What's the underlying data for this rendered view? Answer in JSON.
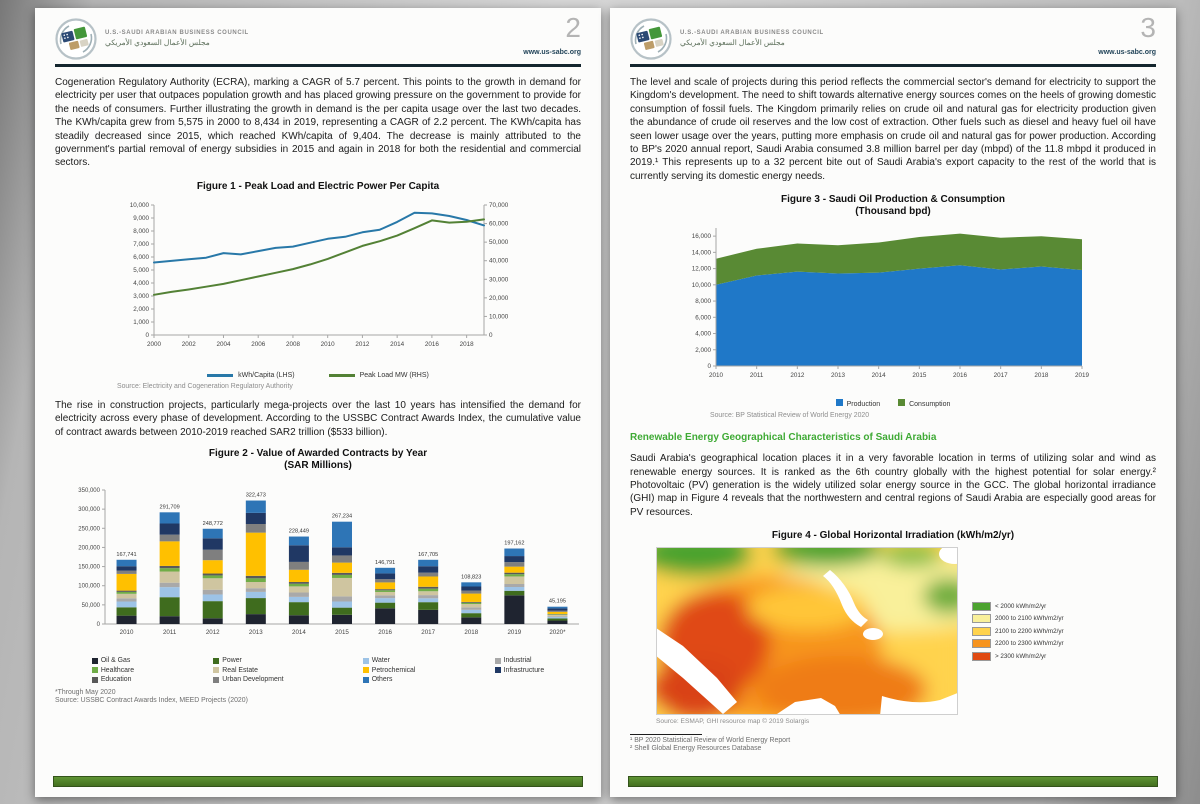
{
  "header": {
    "org_name_en": "U.S.-SAUDI ARABIAN BUSINESS COUNCIL",
    "org_name_ar": "مجلس الأعمال السعودي الأمريكي",
    "website": "www.us-sabc.org"
  },
  "pages": {
    "p2": {
      "page_number": "2",
      "paragraph1": "Cogeneration Regulatory Authority (ECRA), marking a CAGR of 5.7 percent. This points to the growth in demand for electricity per user that outpaces population growth and has placed growing pressure on the government to provide for the needs of consumers. Further illustrating the growth in demand is the per capita usage over the last two decades. The KWh/capita grew from 5,575 in 2000 to 8,434 in 2019, representing a CAGR of 2.2 percent. The KWh/capita has steadily decreased since 2015, which reached KWh/capita of 9,404. The decrease is mainly attributed to the government's partial removal of energy subsidies in 2015 and again in 2018 for both the residential and commercial sectors.",
      "paragraph2": "The rise in construction projects, particularly mega-projects over the last 10 years has intensified the demand for electricity across every phase of development. According to the USSBC Contract Awards Index, the cumulative value of contract awards between 2010-2019 reached SAR2 trillion ($533 billion)."
    },
    "p3": {
      "page_number": "3",
      "paragraph1": "The level and scale of projects during this period reflects the commercial sector's demand for electricity to support the Kingdom's development. The need to shift towards alternative energy sources comes on the heels of growing domestic consumption of fossil fuels. The Kingdom primarily relies on crude oil and natural gas for electricity production given the abundance of crude oil reserves and the low cost of extraction. Other fuels such as diesel and heavy fuel oil have seen lower usage over the years, putting more emphasis on crude oil and natural gas for power production. According to BP's 2020 annual report, Saudi Arabia consumed 3.8 million barrel per day (mbpd) of the 11.8 mbpd it produced in 2019.¹ This represents up to a 32 percent bite out of Saudi Arabia's export capacity to the rest of the world that is currently serving its domestic energy needs.",
      "section_heading": "Renewable Energy Geographical Characteristics of Saudi Arabia",
      "paragraph2": "Saudi Arabia's geographical location places it in a very favorable location in terms of utilizing solar and wind as renewable energy sources. It is ranked as the 6th country globally with the highest potential for solar energy.² Photovoltaic (PV) generation is the widely utilized solar energy source in the GCC. The global horizontal irradiance (GHI) map in Figure 4 reveals that the northwestern and central regions of Saudi Arabia are especially good areas for PV resources.",
      "footnote1": "¹ BP 2020 Statistical Review of World Energy Report",
      "footnote2": "² Shell Global Energy Resources Database"
    }
  },
  "chart_data": [
    {
      "id": "figure1",
      "type": "line",
      "title": "Figure 1 - Peak Load and Electric Power Per Capita",
      "x": [
        2000,
        2001,
        2002,
        2003,
        2004,
        2005,
        2006,
        2007,
        2008,
        2009,
        2010,
        2011,
        2012,
        2013,
        2014,
        2015,
        2016,
        2017,
        2018,
        2019
      ],
      "x_tick_every": 2,
      "left_axis": {
        "min": 0,
        "max": 10000,
        "step": 1000
      },
      "right_axis": {
        "min": 0,
        "max": 70000,
        "step": 10000
      },
      "series": [
        {
          "name": "kWh/Capita (LHS)",
          "color": "#2878a8",
          "axis": "left",
          "values": [
            5575,
            5700,
            5820,
            5950,
            6300,
            6200,
            6450,
            6700,
            6800,
            7100,
            7400,
            7550,
            7900,
            8100,
            8700,
            9404,
            9350,
            9150,
            8850,
            8434
          ]
        },
        {
          "name": "Peak Load MW (RHS)",
          "color": "#538135",
          "axis": "right",
          "values": [
            21673,
            23200,
            24500,
            26000,
            27500,
            29500,
            31500,
            33500,
            35500,
            38000,
            41000,
            44500,
            48000,
            50500,
            53500,
            57500,
            61700,
            60500,
            61000,
            62260
          ]
        }
      ],
      "grid": false,
      "legend_position": "bottom",
      "source": "Source: Electricity and Cogeneration Regulatory Authority"
    },
    {
      "id": "figure2",
      "type": "bar",
      "title": "Figure 2 - Value of Awarded Contracts by Year",
      "subtitle": "(SAR Millions)",
      "categories": [
        "2010",
        "2011",
        "2012",
        "2013",
        "2014",
        "2015",
        "2016",
        "2017",
        "2018",
        "2019",
        "2020*"
      ],
      "totals": [
        167741,
        291709,
        248772,
        322473,
        228449,
        267234,
        146791,
        167705,
        108823,
        197162,
        45195
      ],
      "y_axis": {
        "min": 0,
        "max": 350000,
        "step": 50000
      },
      "sectors": [
        {
          "name": "Oil & Gas",
          "color": "#1f2430",
          "pct": [
            13,
            7,
            6,
            8,
            10,
            9,
            28,
            22,
            16,
            38,
            20
          ]
        },
        {
          "name": "Power",
          "color": "#3f6c1e",
          "pct": [
            13,
            17,
            18,
            13,
            15,
            7,
            10,
            12,
            10,
            6,
            12
          ]
        },
        {
          "name": "Water",
          "color": "#9dc3e6",
          "pct": [
            9,
            9,
            7,
            5,
            6,
            6,
            8,
            6,
            8,
            5,
            8
          ]
        },
        {
          "name": "Industrial",
          "color": "#a9a9a9",
          "pct": [
            5,
            4,
            5,
            3,
            5,
            5,
            5,
            5,
            6,
            4,
            5
          ]
        },
        {
          "name": "Real Estate",
          "color": "#cfc5a0",
          "pct": [
            7,
            10,
            12,
            5,
            7,
            18,
            6,
            6,
            8,
            10,
            8
          ]
        },
        {
          "name": "Healthcare",
          "color": "#70ad47",
          "pct": [
            3,
            3,
            3,
            3,
            3,
            3,
            3,
            4,
            3,
            3,
            3
          ]
        },
        {
          "name": "Education",
          "color": "#595959",
          "pct": [
            2,
            2,
            2,
            2,
            2,
            2,
            2,
            3,
            2,
            2,
            2
          ]
        },
        {
          "name": "Petrochemical",
          "color": "#ffc000",
          "pct": [
            26,
            22,
            14,
            35,
            14,
            10,
            12,
            16,
            20,
            8,
            12
          ]
        },
        {
          "name": "Urban Development",
          "color": "#7f7f7f",
          "pct": [
            5,
            6,
            11,
            7,
            9,
            7,
            6,
            6,
            7,
            6,
            8
          ]
        },
        {
          "name": "Infrastructure",
          "color": "#203864",
          "pct": [
            7,
            10,
            12,
            9,
            19,
            8,
            10,
            10,
            10,
            8,
            12
          ]
        },
        {
          "name": "Others",
          "color": "#2e75b6",
          "pct": [
            10,
            10,
            10,
            10,
            10,
            25,
            10,
            10,
            10,
            10,
            10
          ]
        }
      ],
      "legend_order": [
        0,
        5,
        6,
        1,
        4,
        8,
        2,
        7,
        10,
        3,
        9
      ],
      "grid": false,
      "footnote": "*Through May 2020",
      "source": "Source: USSBC Contract Awards Index, MEED Projects (2020)"
    },
    {
      "id": "figure3",
      "type": "area",
      "title": "Figure 3 - Saudi Oil Production & Consumption",
      "subtitle": "(Thousand bpd)",
      "x": [
        2010,
        2011,
        2012,
        2013,
        2014,
        2015,
        2016,
        2017,
        2018,
        2019
      ],
      "y_axis": {
        "min": 0,
        "max": 17000,
        "step": 2000,
        "label_max": 16000
      },
      "series": [
        {
          "name": "Production",
          "color": "#1f78c8",
          "values": [
            10007,
            11144,
            11635,
            11393,
            11505,
            11994,
            12406,
            11892,
            12261,
            11832
          ]
        },
        {
          "name": "Consumption",
          "color": "#598a34",
          "values": [
            3208,
            3295,
            3460,
            3472,
            3712,
            3893,
            3906,
            3918,
            3724,
            3788
          ]
        }
      ],
      "grid": false,
      "legend_position": "bottom",
      "source": "Source: BP Statistical Review of World Energy 2020"
    },
    {
      "id": "figure4",
      "type": "heatmap",
      "title": "Figure 4 - Global Horizontal Irradiation (kWh/m2/yr)",
      "legend": [
        {
          "color": "#4ca32f",
          "label": "< 2000 kWh/m2/yr"
        },
        {
          "color": "#f9f09a",
          "label": "2000 to 2100 kWh/m2/yr"
        },
        {
          "color": "#ffd34d",
          "label": "2100 to 2200 kWh/m2/yr"
        },
        {
          "color": "#f7941e",
          "label": "2200 to 2300 kWh/m2/yr"
        },
        {
          "color": "#e04a12",
          "label": "> 2300 kWh/m2/yr"
        }
      ],
      "source": "Source: ESMAP, GHI resource map © 2019 Solargis"
    }
  ]
}
